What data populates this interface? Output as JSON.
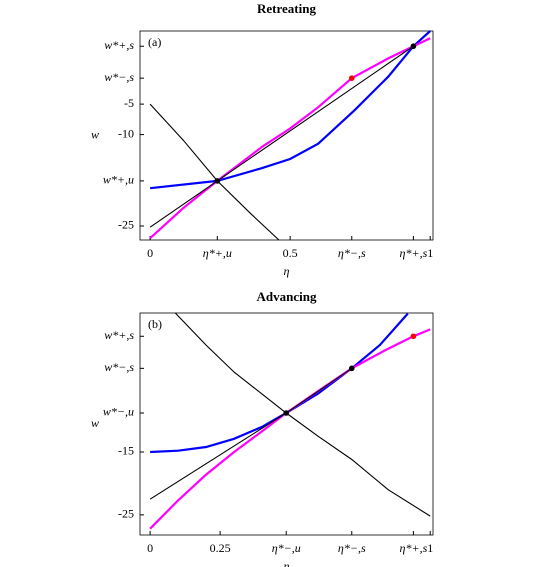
{
  "chart_data": [
    {
      "type": "line",
      "title": "Retreating",
      "panel_label": "(a)",
      "x_label": "η",
      "y_label": "w",
      "xlim": [
        -0.036,
        1.01
      ],
      "ylim": [
        -27.3,
        7
      ],
      "xticks": [
        0,
        {
          "value": 0.24,
          "label": "η*+,u"
        },
        0.5,
        {
          "value": 0.72,
          "label": "η*−,s"
        },
        {
          "value": 0.94,
          "label": "η*+,s"
        },
        1
      ],
      "yticks": [
        {
          "value": 4.5,
          "label": "w*+,s"
        },
        {
          "value": -0.74,
          "label": "w*−,s"
        },
        -5,
        -10,
        {
          "value": -17.6,
          "label": "w*+,u"
        },
        -25
      ],
      "series": [
        {
          "color": "#0000ff",
          "x": [
            0,
            0.24,
            0.4,
            0.5,
            0.6,
            0.73,
            0.85,
            0.94,
            1.0
          ],
          "values": [
            -18.8,
            -17.6,
            -15.5,
            -14,
            -11.5,
            -6,
            -0.5,
            4.5,
            7
          ]
        },
        {
          "color": "#ff00ff",
          "x": [
            0,
            0.12,
            0.24,
            0.4,
            0.5,
            0.6,
            0.72,
            0.85,
            0.94,
            1.0
          ],
          "values": [
            -27,
            -22,
            -17.6,
            -12,
            -9,
            -5.5,
            -0.74,
            2.5,
            4.5,
            5.8
          ]
        },
        {
          "color": "#000000",
          "x": [
            0,
            0.24,
            0.94
          ],
          "values": [
            -25.2,
            -17.6,
            4.5
          ]
        },
        {
          "color": "#000000",
          "x": [
            0,
            0.12,
            0.24,
            0.36,
            0.46
          ],
          "values": [
            -5,
            -11,
            -17.6,
            -23,
            -27.3
          ]
        }
      ],
      "points": [
        {
          "color": "#000000",
          "x": [
            0.24,
            0.94
          ],
          "values": [
            -17.6,
            4.5
          ]
        },
        {
          "color": "#ff0000",
          "x": [
            0.72
          ],
          "values": [
            -0.74
          ]
        }
      ]
    },
    {
      "type": "line",
      "title": "Advancing",
      "panel_label": "(b)",
      "x_label": "η",
      "y_label": "w",
      "xlim": [
        -0.036,
        1.01
      ],
      "ylim": [
        -28.2,
        7.1
      ],
      "xticks": [
        0,
        0.25,
        {
          "value": 0.486,
          "label": "η*−,u"
        },
        {
          "value": 0.72,
          "label": "η*−,s"
        },
        {
          "value": 0.94,
          "label": "η*+,s"
        },
        1
      ],
      "yticks": [
        {
          "value": 3.4,
          "label": "w*+,s"
        },
        {
          "value": -1.7,
          "label": "w*−,s"
        },
        {
          "value": -8.8,
          "label": "w*−,u"
        },
        -15,
        -25
      ],
      "series": [
        {
          "color": "#0000ff",
          "x": [
            0,
            0.1,
            0.2,
            0.3,
            0.4,
            0.486,
            0.6,
            0.72,
            0.82,
            0.92
          ],
          "values": [
            -15,
            -14.8,
            -14.2,
            -12.9,
            -11,
            -8.8,
            -5.7,
            -1.7,
            2,
            7
          ]
        },
        {
          "color": "#ff00ff",
          "x": [
            0,
            0.1,
            0.2,
            0.3,
            0.4,
            0.486,
            0.6,
            0.72,
            0.84,
            0.94,
            1.0
          ],
          "values": [
            -27.2,
            -22.7,
            -18.6,
            -15,
            -11.7,
            -8.8,
            -5.3,
            -1.7,
            1.2,
            3.4,
            4.5
          ]
        },
        {
          "color": "#000000",
          "x": [
            0,
            0.486,
            0.72
          ],
          "values": [
            -22.5,
            -8.8,
            -1.7
          ]
        },
        {
          "color": "#000000",
          "x": [
            0.09,
            0.2,
            0.3,
            0.4,
            0.486,
            0.6,
            0.72,
            0.85,
            1.0
          ],
          "values": [
            7.1,
            2,
            -2.3,
            -5.8,
            -8.8,
            -12.5,
            -16.2,
            -21,
            -25.2
          ]
        }
      ],
      "points": [
        {
          "color": "#000000",
          "x": [
            0.486,
            0.72
          ],
          "values": [
            -8.8,
            -1.7
          ]
        },
        {
          "color": "#ff0000",
          "x": [
            0.94
          ],
          "values": [
            3.4
          ]
        }
      ]
    }
  ]
}
